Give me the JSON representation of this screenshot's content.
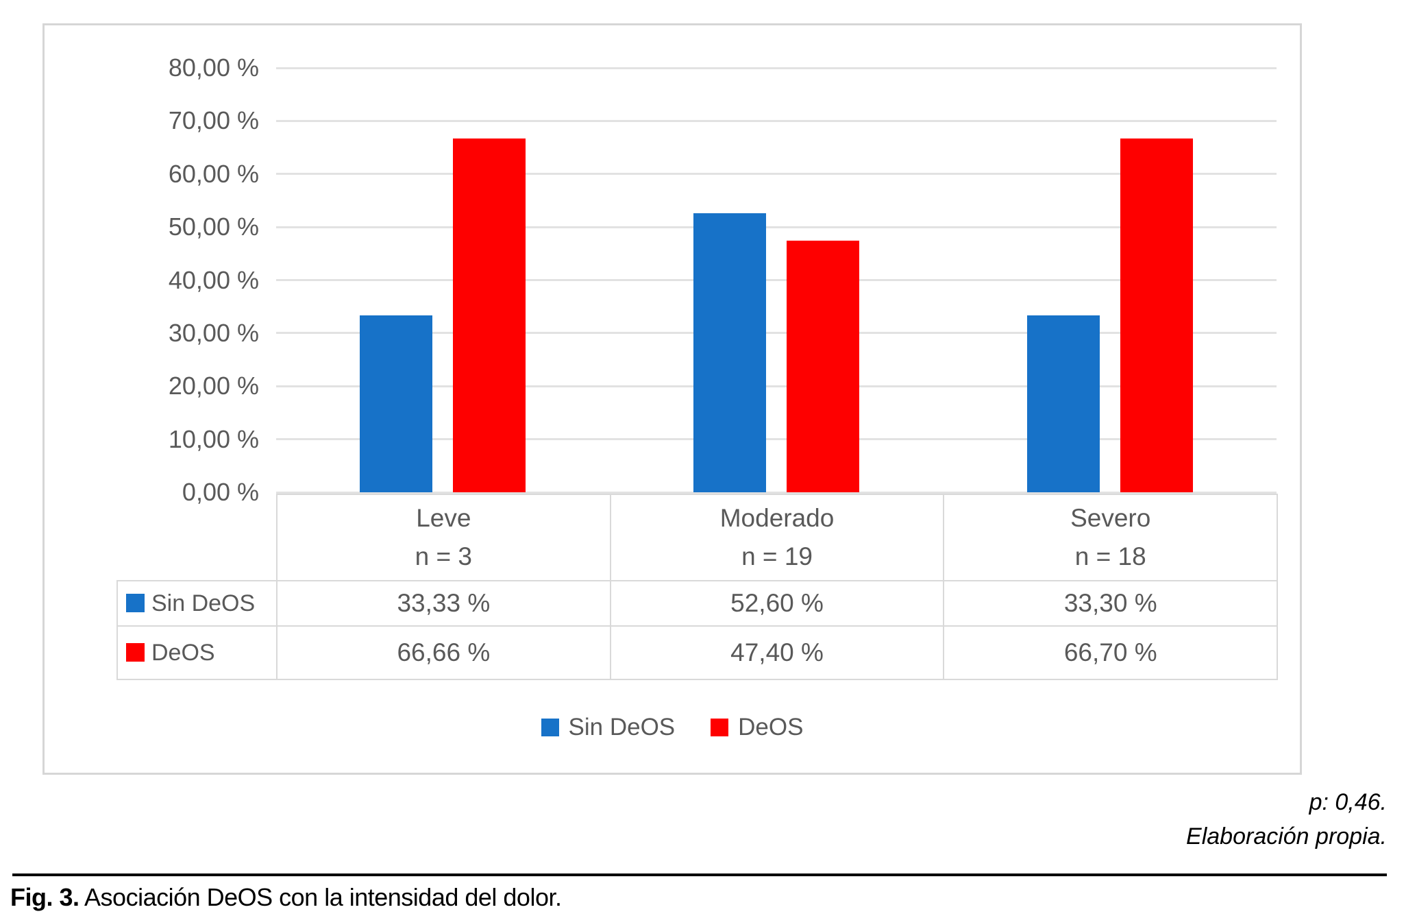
{
  "figure": {
    "p_value_note": "p: 0,46.",
    "source_note": "Elaboración propia.",
    "caption_label": "Fig. 3.",
    "caption_text": " Asociación DeOS con la intensidad del dolor."
  },
  "colors": {
    "sin_deos": "#1772c8",
    "deos": "#fe0000",
    "axis_text": "#595959",
    "gridline": "#e2e2e2",
    "table_border": "#d9d9d9"
  },
  "chart_data": {
    "type": "bar",
    "title": "",
    "xlabel": "",
    "ylabel": "",
    "ylim": [
      0,
      80
    ],
    "grid": true,
    "legend_position": "bottom",
    "data_table_shown": true,
    "y_tick_values": [
      0,
      10,
      20,
      30,
      40,
      50,
      60,
      70,
      80
    ],
    "y_tick_labels": [
      "0,00 %",
      "10,00 %",
      "20,00 %",
      "30,00 %",
      "40,00 %",
      "50,00 %",
      "60,00 %",
      "70,00 %",
      "80,00 %"
    ],
    "categories": [
      "Leve",
      "Moderado",
      "Severo"
    ],
    "category_sublabels": [
      "n = 3",
      "n = 19",
      "n = 18"
    ],
    "series": [
      {
        "name": "Sin DeOS",
        "color": "#1772c8",
        "values": [
          33.33,
          52.6,
          33.3
        ],
        "value_labels": [
          "33,33 %",
          "52,60 %",
          "33,30 %"
        ]
      },
      {
        "name": "DeOS",
        "color": "#fe0000",
        "values": [
          66.66,
          47.4,
          66.7
        ],
        "value_labels": [
          "66,66 %",
          "47,40 %",
          "66,70 %"
        ]
      }
    ]
  }
}
